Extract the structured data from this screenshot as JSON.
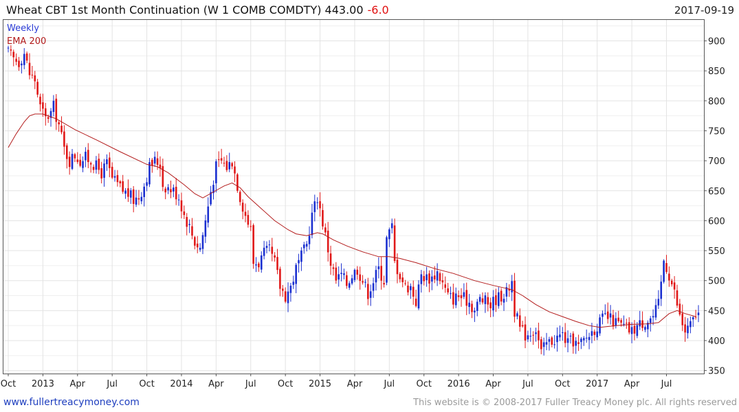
{
  "header": {
    "title": "Wheat CBT 1st Month Continuation (W 1 COMB COMDTY) 443.00",
    "change": "-6.0",
    "date": "2017-09-19"
  },
  "legend": {
    "weekly": "Weekly",
    "ema": "EMA 200"
  },
  "footer": {
    "left": "www.fullertreacymoney.com",
    "right": "This website is © 2008-2017 Fuller Treacy Money plc. All rights reserved"
  },
  "colors": {
    "up": "#1a2fd0",
    "down": "#e01818",
    "ema": "#b31b1b",
    "grid": "#e3e3e3",
    "frame": "#555555"
  },
  "chart_data": {
    "type": "candlestick",
    "frequency": "weekly",
    "ylim": [
      345,
      935
    ],
    "y_ticks": [
      350,
      400,
      450,
      500,
      550,
      600,
      650,
      700,
      750,
      800,
      850,
      900
    ],
    "x_tick_labels": [
      {
        "label": "Oct",
        "week": 0
      },
      {
        "label": "2013",
        "week": 13
      },
      {
        "label": "Apr",
        "week": 26
      },
      {
        "label": "Jul",
        "week": 39
      },
      {
        "label": "Oct",
        "week": 52
      },
      {
        "label": "2014",
        "week": 65
      },
      {
        "label": "Apr",
        "week": 78
      },
      {
        "label": "Jul",
        "week": 91
      },
      {
        "label": "Oct",
        "week": 104
      },
      {
        "label": "2015",
        "week": 117
      },
      {
        "label": "Apr",
        "week": 130
      },
      {
        "label": "Jul",
        "week": 143
      },
      {
        "label": "Oct",
        "week": 156
      },
      {
        "label": "2016",
        "week": 169
      },
      {
        "label": "Apr",
        "week": 182
      },
      {
        "label": "Jul",
        "week": 195
      },
      {
        "label": "Oct",
        "week": 208
      },
      {
        "label": "2017",
        "week": 221
      },
      {
        "label": "Apr",
        "week": 234
      },
      {
        "label": "Jul",
        "week": 247
      }
    ],
    "weeks_total": 260,
    "close_path": [
      [
        0,
        880
      ],
      [
        2,
        870
      ],
      [
        4,
        865
      ],
      [
        6,
        880
      ],
      [
        8,
        845
      ],
      [
        10,
        835
      ],
      [
        12,
        790
      ],
      [
        14,
        770
      ],
      [
        16,
        780
      ],
      [
        17,
        790
      ],
      [
        19,
        760
      ],
      [
        21,
        720
      ],
      [
        23,
        700
      ],
      [
        25,
        710
      ],
      [
        27,
        700
      ],
      [
        29,
        705
      ],
      [
        31,
        700
      ],
      [
        33,
        690
      ],
      [
        35,
        680
      ],
      [
        37,
        695
      ],
      [
        39,
        670
      ],
      [
        41,
        660
      ],
      [
        43,
        650
      ],
      [
        45,
        645
      ],
      [
        47,
        635
      ],
      [
        49,
        640
      ],
      [
        51,
        660
      ],
      [
        53,
        690
      ],
      [
        55,
        700
      ],
      [
        57,
        695
      ],
      [
        58,
        660
      ],
      [
        60,
        655
      ],
      [
        62,
        650
      ],
      [
        64,
        640
      ],
      [
        66,
        610
      ],
      [
        68,
        590
      ],
      [
        70,
        565
      ],
      [
        72,
        555
      ],
      [
        74,
        600
      ],
      [
        76,
        650
      ],
      [
        78,
        690
      ],
      [
        80,
        700
      ],
      [
        82,
        690
      ],
      [
        84,
        700
      ],
      [
        86,
        660
      ],
      [
        87,
        640
      ],
      [
        89,
        610
      ],
      [
        91,
        585
      ],
      [
        92,
        530
      ],
      [
        94,
        530
      ],
      [
        96,
        545
      ],
      [
        98,
        550
      ],
      [
        100,
        530
      ],
      [
        102,
        490
      ],
      [
        104,
        475
      ],
      [
        106,
        490
      ],
      [
        108,
        520
      ],
      [
        110,
        540
      ],
      [
        112,
        560
      ],
      [
        114,
        610
      ],
      [
        116,
        640
      ],
      [
        117,
        620
      ],
      [
        119,
        575
      ],
      [
        121,
        530
      ],
      [
        123,
        500
      ],
      [
        125,
        510
      ],
      [
        127,
        495
      ],
      [
        129,
        510
      ],
      [
        131,
        520
      ],
      [
        133,
        500
      ],
      [
        135,
        480
      ],
      [
        137,
        500
      ],
      [
        139,
        520
      ],
      [
        141,
        500
      ],
      [
        142,
        570
      ],
      [
        144,
        590
      ],
      [
        145,
        530
      ],
      [
        147,
        510
      ],
      [
        149,
        490
      ],
      [
        151,
        490
      ],
      [
        153,
        465
      ],
      [
        155,
        510
      ],
      [
        157,
        505
      ],
      [
        159,
        505
      ],
      [
        161,
        515
      ],
      [
        163,
        495
      ],
      [
        165,
        475
      ],
      [
        167,
        470
      ],
      [
        169,
        475
      ],
      [
        171,
        470
      ],
      [
        173,
        465
      ],
      [
        175,
        450
      ],
      [
        177,
        470
      ],
      [
        179,
        465
      ],
      [
        181,
        460
      ],
      [
        183,
        470
      ],
      [
        185,
        475
      ],
      [
        187,
        480
      ],
      [
        189,
        500
      ],
      [
        190,
        450
      ],
      [
        192,
        420
      ],
      [
        194,
        410
      ],
      [
        196,
        415
      ],
      [
        198,
        420
      ],
      [
        200,
        380
      ],
      [
        202,
        395
      ],
      [
        204,
        400
      ],
      [
        206,
        405
      ],
      [
        208,
        410
      ],
      [
        210,
        395
      ],
      [
        212,
        400
      ],
      [
        214,
        390
      ],
      [
        216,
        400
      ],
      [
        218,
        410
      ],
      [
        220,
        420
      ],
      [
        222,
        430
      ],
      [
        224,
        440
      ],
      [
        226,
        435
      ],
      [
        228,
        430
      ],
      [
        230,
        425
      ],
      [
        232,
        420
      ],
      [
        234,
        415
      ],
      [
        236,
        425
      ],
      [
        238,
        430
      ],
      [
        240,
        435
      ],
      [
        242,
        440
      ],
      [
        244,
        460
      ],
      [
        245,
        495
      ],
      [
        246,
        535
      ],
      [
        248,
        510
      ],
      [
        250,
        480
      ],
      [
        252,
        440
      ],
      [
        254,
        415
      ],
      [
        256,
        425
      ],
      [
        258,
        443
      ]
    ],
    "ema_200": [
      [
        0,
        722
      ],
      [
        3,
        745
      ],
      [
        6,
        765
      ],
      [
        8,
        775
      ],
      [
        10,
        778
      ],
      [
        13,
        778
      ],
      [
        18,
        770
      ],
      [
        25,
        752
      ],
      [
        33,
        735
      ],
      [
        42,
        715
      ],
      [
        52,
        694
      ],
      [
        56,
        690
      ],
      [
        60,
        680
      ],
      [
        66,
        660
      ],
      [
        70,
        645
      ],
      [
        73,
        638
      ],
      [
        77,
        648
      ],
      [
        81,
        658
      ],
      [
        84,
        663
      ],
      [
        87,
        655
      ],
      [
        90,
        640
      ],
      [
        95,
        620
      ],
      [
        100,
        600
      ],
      [
        105,
        585
      ],
      [
        108,
        578
      ],
      [
        112,
        575
      ],
      [
        116,
        580
      ],
      [
        118,
        578
      ],
      [
        122,
        568
      ],
      [
        127,
        558
      ],
      [
        133,
        548
      ],
      [
        139,
        540
      ],
      [
        143,
        540
      ],
      [
        147,
        537
      ],
      [
        153,
        530
      ],
      [
        160,
        520
      ],
      [
        167,
        512
      ],
      [
        175,
        500
      ],
      [
        182,
        492
      ],
      [
        189,
        485
      ],
      [
        193,
        475
      ],
      [
        198,
        460
      ],
      [
        203,
        448
      ],
      [
        208,
        440
      ],
      [
        213,
        432
      ],
      [
        218,
        425
      ],
      [
        222,
        422
      ],
      [
        228,
        425
      ],
      [
        234,
        427
      ],
      [
        240,
        428
      ],
      [
        244,
        430
      ],
      [
        248,
        445
      ],
      [
        251,
        450
      ],
      [
        254,
        445
      ],
      [
        258,
        440
      ]
    ]
  }
}
